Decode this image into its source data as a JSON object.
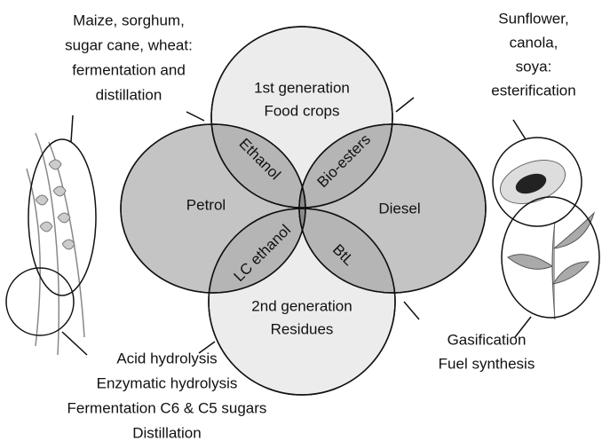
{
  "top_circle": {
    "lines": [
      "1st generation",
      "Food crops"
    ]
  },
  "bottom_circle": {
    "lines": [
      "2nd generation",
      "Residues"
    ]
  },
  "left_ellipse": {
    "label": "Petrol"
  },
  "right_ellipse": {
    "label": "Diesel"
  },
  "overlaps": {
    "ethanol": "Ethanol",
    "bio_esters": "Bio-esters",
    "lc_ethanol": "LC ethanol",
    "btl": "BtL"
  },
  "notes": {
    "top_left": [
      "Maize, sorghum,",
      "sugar cane, wheat:",
      "fermentation and",
      "distillation"
    ],
    "top_right": [
      "Sunflower,",
      "canola,",
      "soya:",
      "esterification"
    ],
    "bottom_left": [
      "Acid hydrolysis",
      "Enzymatic hydrolysis",
      "Fermentation C6 & C5 sugars",
      "Distillation"
    ],
    "bottom_right": [
      "Gasification",
      "Fuel synthesis"
    ]
  }
}
